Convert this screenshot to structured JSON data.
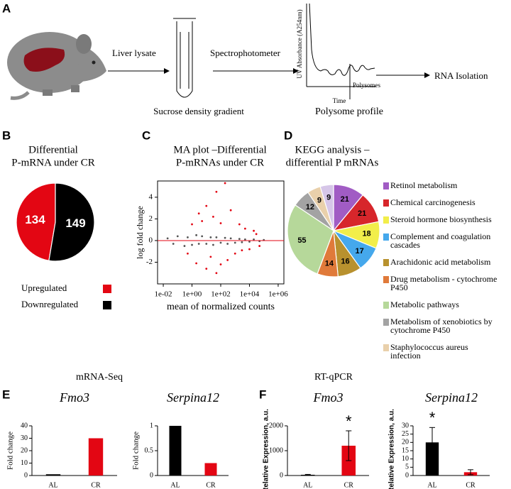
{
  "panel_labels": [
    "A",
    "B",
    "C",
    "D",
    "E",
    "F"
  ],
  "diagram": {
    "steps": [
      "Liver lysate",
      "Spectrophotometer",
      "RNA Isolation"
    ],
    "tube_label": "Sucrose density gradient",
    "profile": {
      "title": "Polysome profile",
      "ylabel": "UV Absorbance (A254nm)",
      "xlabel": "Time",
      "annotation": "Polysomes"
    }
  },
  "section_titles": {
    "E": "mRNA-Seq",
    "F": "RT-qPCR"
  },
  "chart_data": [
    {
      "type": "pie",
      "title": [
        "Differential",
        "P-mRNA under CR"
      ],
      "categories": [
        "Upregulated",
        "Downregulated"
      ],
      "values": [
        134,
        149
      ],
      "colors": [
        "#e30613",
        "#000000"
      ],
      "direction": "counterclockwise"
    },
    {
      "type": "scatter",
      "title": [
        "MA plot –Differential",
        "P-mRNAs under CR"
      ],
      "xlabel": "mean of normalized counts",
      "ylabel": "log fold change",
      "xscale": "log",
      "xlim": [
        0.004,
        2500000
      ],
      "ylim": [
        -4,
        5.5
      ],
      "xticks": [
        {
          "value": 0.01,
          "label": "1e-02"
        },
        {
          "value": 1,
          "label": "1e+00"
        },
        {
          "value": 100,
          "label": "1e+02"
        },
        {
          "value": 10000,
          "label": "1e+04"
        },
        {
          "value": 1000000,
          "label": "1e+06"
        }
      ],
      "yticks": [
        -2,
        0,
        2,
        4
      ],
      "hline": 0,
      "hline_color": "#e30613",
      "series": [
        {
          "color": "#555555",
          "x": [
            0.02,
            0.05,
            0.1,
            0.3,
            0.5,
            1,
            2,
            3,
            5,
            10,
            20,
            30,
            50,
            100,
            200,
            300,
            500,
            1000,
            2000,
            3000,
            5000,
            10000,
            20000,
            50000,
            100000
          ],
          "y": [
            0.2,
            -0.3,
            0.4,
            -0.5,
            0.3,
            -0.4,
            0.5,
            -0.3,
            0.4,
            -0.3,
            0.3,
            -0.4,
            0.3,
            -0.2,
            0.25,
            -0.3,
            0.2,
            -0.2,
            0.15,
            -0.15,
            0.1,
            -0.1,
            0.1,
            -0.05,
            0.05
          ]
        },
        {
          "color": "#e30613",
          "x": [
            0.5,
            1,
            2,
            3,
            5,
            10,
            10,
            20,
            30,
            50,
            50,
            100,
            100,
            200,
            300,
            500,
            1000,
            2000,
            3000,
            5000,
            10000,
            20000,
            30000,
            50000
          ],
          "y": [
            -1.2,
            1.5,
            -2.1,
            2.5,
            1.8,
            -2.6,
            3.2,
            -1.5,
            2.2,
            -3,
            4.5,
            1.6,
            -2.2,
            5.3,
            -1.8,
            2.8,
            -1.2,
            1.5,
            -0.9,
            1.1,
            -0.8,
            0.9,
            0.6,
            -0.5
          ]
        }
      ]
    },
    {
      "type": "pie",
      "title": [
        "KEGG analysis –",
        "differential  P mRNAs"
      ],
      "categories": [
        "Retinol metabolism",
        "Chemical carcinogenesis",
        "Steroid hormone biosynthesis",
        "Complement and coagulation cascades",
        "Arachidonic acid metabolism",
        "Drug metabolism - cytochrome P450",
        "Metabolic pathways",
        "Metabolism of xenobiotics by cytochrome P450",
        "Staphylococcus aureus infection",
        null
      ],
      "values": [
        21,
        21,
        18,
        17,
        16,
        14,
        55,
        12,
        9,
        9
      ],
      "colors": [
        "#a15cc4",
        "#d7262b",
        "#f2ee4a",
        "#45a8ec",
        "#b8912e",
        "#e07a3a",
        "#b6d89a",
        "#a3a3a3",
        "#e9d0ab",
        "#d6c6e8"
      ],
      "direction": "clockwise"
    },
    {
      "type": "bar",
      "title": "Fmo3",
      "categories": [
        "AL",
        "CR"
      ],
      "values": [
        1,
        30
      ],
      "colors": [
        "#000000",
        "#e30613"
      ],
      "ylabel": "Fold change",
      "ylim": [
        0,
        40
      ],
      "yticks": [
        0,
        10,
        20,
        30,
        40
      ]
    },
    {
      "type": "bar",
      "title": "Serpina12",
      "categories": [
        "AL",
        "CR"
      ],
      "values": [
        1,
        0.25
      ],
      "colors": [
        "#000000",
        "#e30613"
      ],
      "ylabel": "Fold change",
      "ylim": [
        0,
        1
      ],
      "yticks": [
        0,
        0.5,
        1
      ]
    },
    {
      "type": "bar",
      "title": "Fmo3",
      "categories": [
        "AL",
        "CR"
      ],
      "values": [
        30,
        1200
      ],
      "errors": [
        15,
        600
      ],
      "colors": [
        "#000000",
        "#e30613"
      ],
      "ylabel": "Relative Expression, a.u.",
      "ylim": [
        0,
        2000
      ],
      "yticks": [
        0,
        1000,
        2000
      ],
      "annotations": [
        {
          "text": "*",
          "x": "CR"
        }
      ]
    },
    {
      "type": "bar",
      "title": "Serpina12",
      "categories": [
        "AL",
        "CR"
      ],
      "values": [
        20,
        2
      ],
      "errors": [
        9,
        1.5
      ],
      "colors": [
        "#000000",
        "#e30613"
      ],
      "ylabel": "Relative Expression, a.u.",
      "ylim": [
        0,
        30
      ],
      "yticks": [
        0,
        5,
        10,
        15,
        20,
        25,
        30
      ],
      "annotations": [
        {
          "text": "*",
          "x": "AL"
        }
      ]
    }
  ]
}
